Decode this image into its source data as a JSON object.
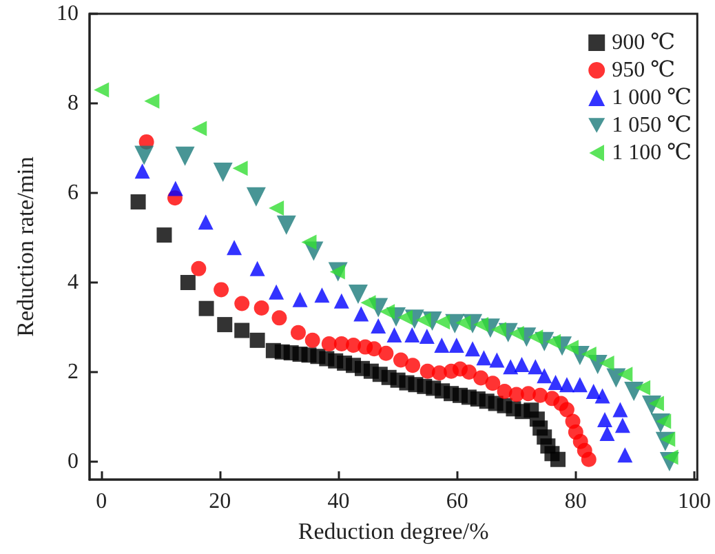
{
  "chart_data": {
    "type": "scatter",
    "xlabel": "Reduction degree/%",
    "ylabel": "Reduction rate/min",
    "xlim": [
      -2,
      100.5
    ],
    "ylim": [
      -0.4,
      10
    ],
    "xticks": [
      0,
      20,
      40,
      60,
      80,
      100
    ],
    "yticks": [
      0,
      2,
      4,
      6,
      8,
      10
    ],
    "grid": false,
    "legend": "top right",
    "series": [
      {
        "name": "900 ℃",
        "color": "#000000",
        "marker": "square",
        "x": [
          6.2,
          10.6,
          14.6,
          17.7,
          20.8,
          23.7,
          26.3,
          29,
          30.5,
          32,
          33.5,
          35,
          36.5,
          38,
          39.5,
          41,
          42.5,
          44,
          45.5,
          47,
          48.5,
          50,
          51.5,
          53,
          54.5,
          56,
          57.5,
          59,
          60.5,
          62,
          63.5,
          65,
          66.5,
          68,
          69.5,
          71,
          72.5,
          73.5,
          74,
          74.7,
          75.3,
          76,
          77
        ],
        "values": [
          5.8,
          5.06,
          4.0,
          3.42,
          3.06,
          2.93,
          2.71,
          2.48,
          2.45,
          2.43,
          2.4,
          2.38,
          2.35,
          2.3,
          2.25,
          2.2,
          2.15,
          2.08,
          2.02,
          1.95,
          1.88,
          1.82,
          1.76,
          1.72,
          1.68,
          1.64,
          1.58,
          1.52,
          1.48,
          1.44,
          1.4,
          1.35,
          1.3,
          1.25,
          1.18,
          1.12,
          1.15,
          0.95,
          0.75,
          0.55,
          0.35,
          0.18,
          0.05
        ]
      },
      {
        "name": "950 ℃",
        "color": "#ff0000",
        "marker": "circle",
        "x": [
          7.6,
          12.4,
          16.4,
          20.2,
          23.7,
          27,
          30,
          33.2,
          35.6,
          38.4,
          40.5,
          42.5,
          44.5,
          46,
          48,
          50.5,
          52.5,
          55,
          57,
          59,
          60.5,
          62,
          64,
          66,
          68,
          70,
          72,
          74,
          76,
          77.5,
          78.5,
          79.5,
          80,
          80.8,
          81.5,
          82.2
        ],
        "values": [
          7.14,
          5.89,
          4.31,
          3.84,
          3.53,
          3.43,
          3.21,
          2.88,
          2.71,
          2.63,
          2.63,
          2.6,
          2.56,
          2.52,
          2.42,
          2.27,
          2.15,
          2.02,
          1.98,
          2.02,
          2.07,
          2.0,
          1.87,
          1.75,
          1.57,
          1.5,
          1.52,
          1.48,
          1.41,
          1.3,
          1.16,
          0.9,
          0.66,
          0.45,
          0.25,
          0.05
        ]
      },
      {
        "name": "1 000 ℃",
        "color": "#0000ff",
        "marker": "triangle",
        "x": [
          6.9,
          12.5,
          17.6,
          22.4,
          26.3,
          29.5,
          33.5,
          37.2,
          40.5,
          43.8,
          46.7,
          49.4,
          52.4,
          54.9,
          57.4,
          59.9,
          62.6,
          64.5,
          66.7,
          69,
          70.9,
          73.2,
          74.7,
          76.6,
          78.5,
          80.7,
          83,
          84.5,
          84.9,
          85.3,
          87.5,
          87.9,
          88.3
        ],
        "values": [
          6.49,
          6.1,
          5.35,
          4.78,
          4.31,
          3.79,
          3.62,
          3.72,
          3.59,
          3.3,
          3.03,
          2.83,
          2.83,
          2.8,
          2.6,
          2.6,
          2.52,
          2.32,
          2.27,
          2.12,
          2.17,
          2.12,
          1.92,
          1.77,
          1.72,
          1.72,
          1.57,
          1.47,
          0.94,
          0.63,
          1.16,
          0.81,
          0.15
        ]
      },
      {
        "name": "1 050 ℃",
        "color": "#1a7a7a",
        "marker": "triangle-down",
        "x": [
          7.2,
          14.1,
          20.5,
          26.1,
          31.2,
          35.8,
          39.9,
          43.3,
          46.7,
          49.7,
          52.8,
          55.8,
          59.6,
          62.6,
          65.6,
          68.6,
          71.7,
          74.7,
          77.7,
          80.7,
          83.7,
          86.8,
          89.8,
          92.8,
          94.3,
          95.1,
          95.8
        ],
        "values": [
          6.84,
          6.82,
          6.46,
          5.91,
          5.28,
          4.7,
          4.24,
          3.74,
          3.44,
          3.23,
          3.18,
          3.14,
          3.08,
          3.08,
          2.98,
          2.88,
          2.78,
          2.68,
          2.58,
          2.37,
          2.17,
          1.87,
          1.57,
          1.26,
          0.86,
          0.45,
          0.0
        ]
      },
      {
        "name": "1 100 ℃",
        "color": "#33dd33",
        "marker": "triangle-left",
        "x": [
          0,
          8.5,
          16.5,
          23.4,
          29.5,
          35,
          39.8,
          45,
          48.2,
          51.2,
          54.3,
          57.5,
          61,
          64,
          67,
          70,
          73.2,
          76.2,
          79.2,
          82.2,
          85.2,
          88.3,
          91.3,
          93.6,
          94.8,
          95.5,
          96
        ],
        "values": [
          8.3,
          8.05,
          7.44,
          6.55,
          5.66,
          4.9,
          4.24,
          3.55,
          3.35,
          3.22,
          3.16,
          3.12,
          3.1,
          3.06,
          2.95,
          2.86,
          2.78,
          2.68,
          2.55,
          2.4,
          2.2,
          1.95,
          1.65,
          1.3,
          0.9,
          0.5,
          0.1
        ]
      }
    ]
  }
}
